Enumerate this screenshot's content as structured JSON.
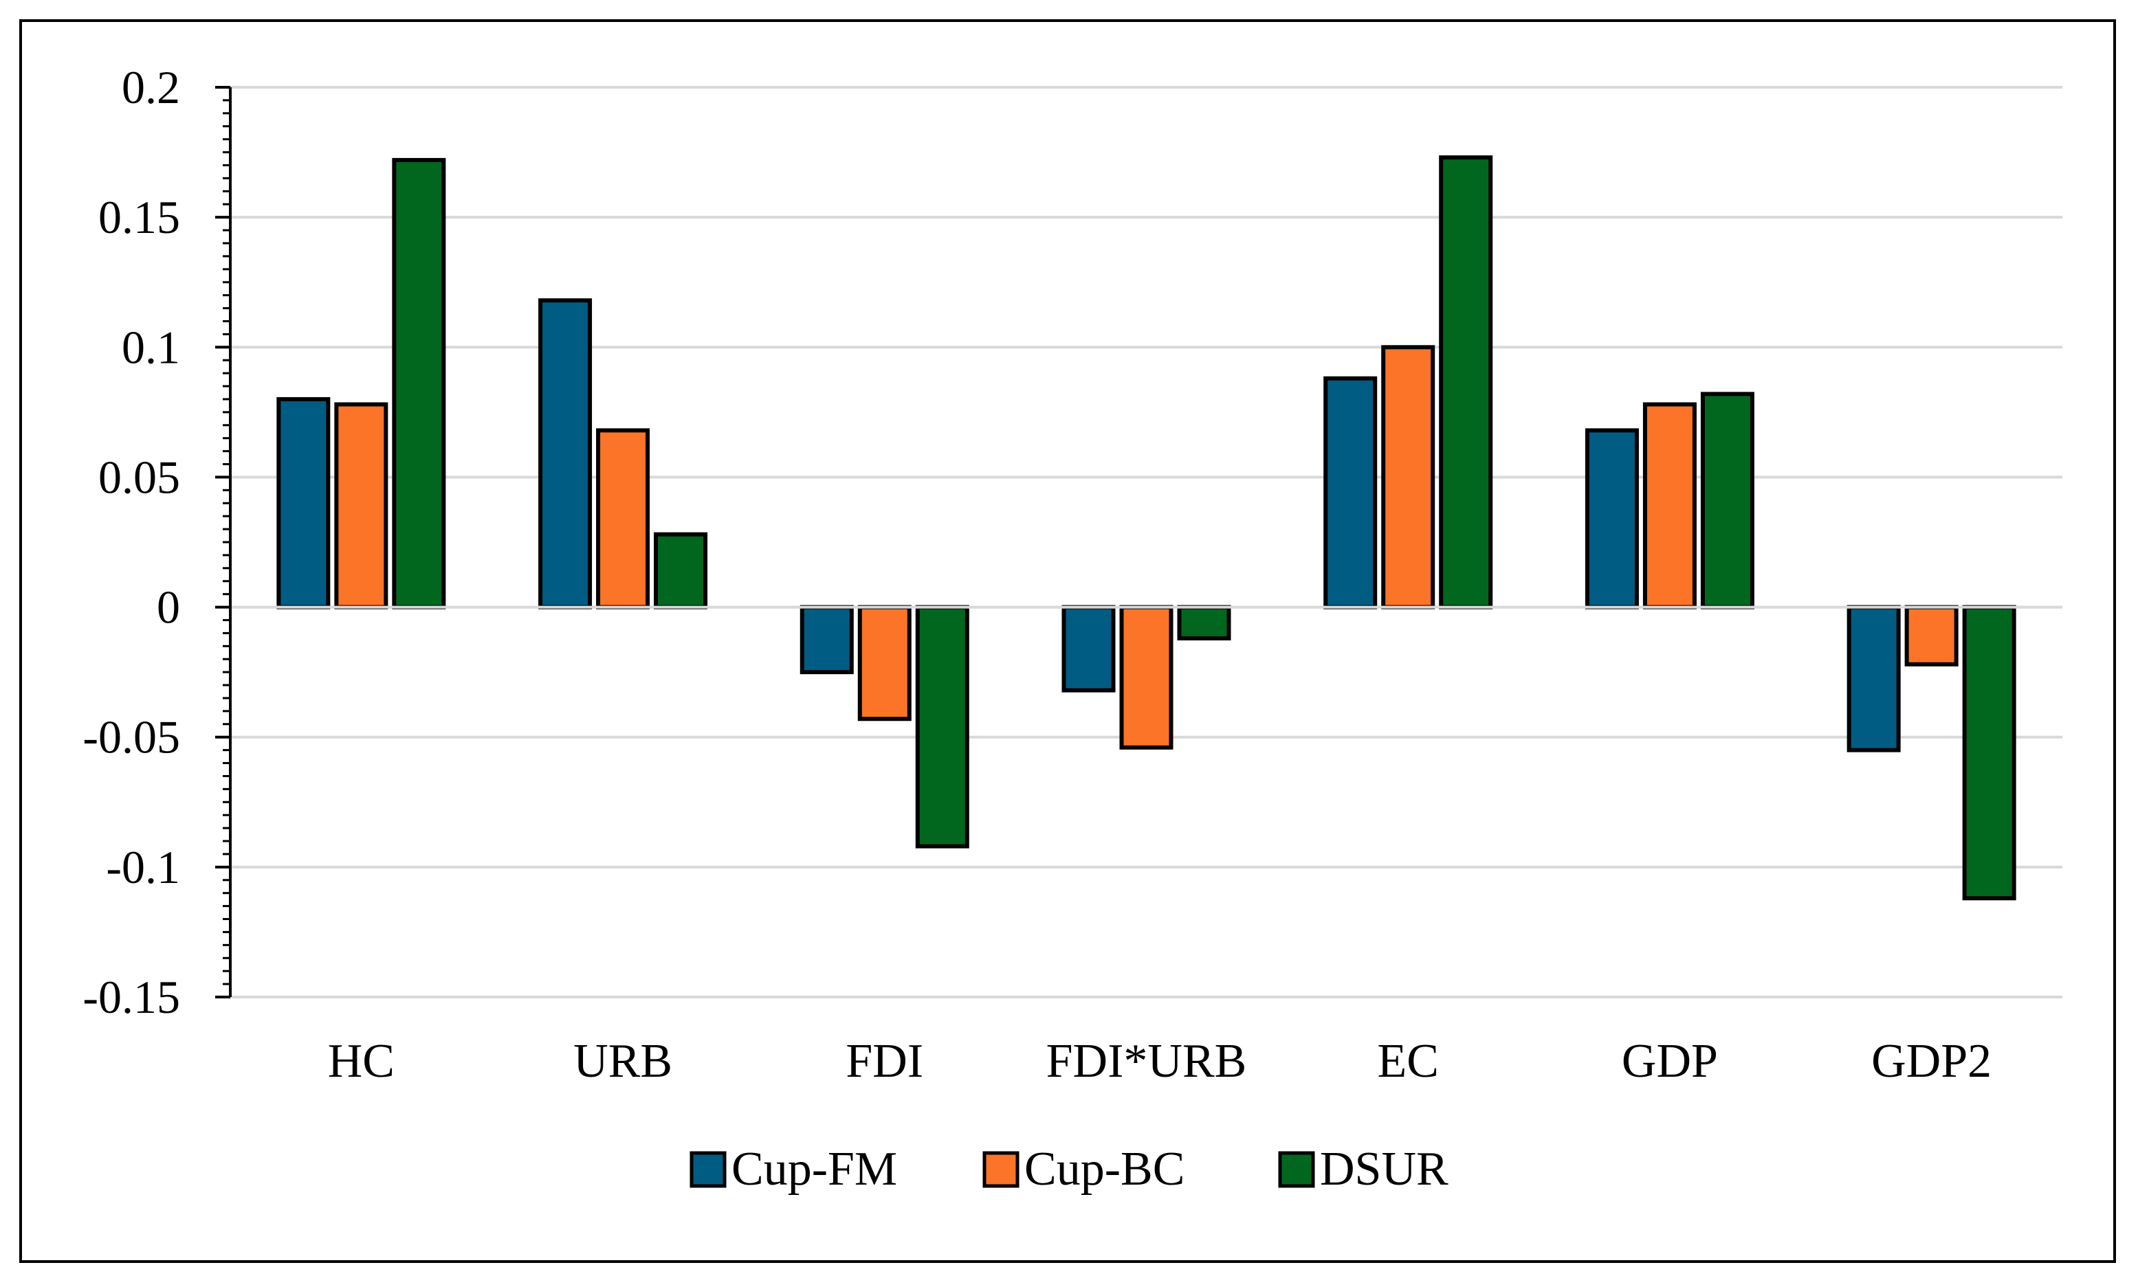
{
  "chart_data": {
    "type": "bar",
    "title": "",
    "xlabel": "",
    "ylabel": "",
    "categories": [
      "HC",
      "URB",
      "FDI",
      "FDI*URB",
      "EC",
      "GDP",
      "GDP2"
    ],
    "series": [
      {
        "name": "Cup-FM",
        "color": "#015c83",
        "values": [
          0.08,
          0.118,
          -0.025,
          -0.032,
          0.088,
          0.068,
          -0.055
        ]
      },
      {
        "name": "Cup-BC",
        "color": "#fc7428",
        "values": [
          0.078,
          0.068,
          -0.043,
          -0.054,
          0.1,
          0.078,
          -0.022
        ]
      },
      {
        "name": "DSUR",
        "color": "#02671e",
        "values": [
          0.172,
          0.028,
          -0.092,
          -0.012,
          0.173,
          0.082,
          -0.112
        ]
      }
    ],
    "ylim": [
      -0.15,
      0.2
    ],
    "yticks": [
      -0.15,
      -0.1,
      -0.05,
      0,
      0.05,
      0.1,
      0.15,
      0.2
    ],
    "ytick_labels": [
      "-0.15",
      "-0.1",
      "-0.05",
      "0",
      "0.05",
      "0.1",
      "0.15",
      "0.2"
    ],
    "grid": true,
    "legend_position": "bottom-center",
    "gridline_color": "#d9d9d9",
    "bar_edge_color": "#000000"
  }
}
